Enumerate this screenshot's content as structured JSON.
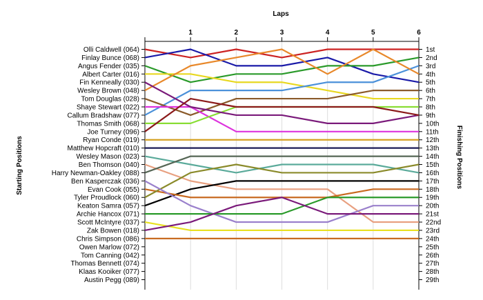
{
  "chart_data": {
    "type": "line",
    "title": "",
    "xlabel": "Laps",
    "ylabel": "Starting Positions",
    "y2label": "Finishing Positions",
    "x": [
      0,
      1,
      2,
      3,
      4,
      5,
      6
    ],
    "x_tick_labels": [
      "1",
      "2",
      "3",
      "4",
      "5",
      "6"
    ],
    "ylim": [
      1,
      29
    ],
    "y_inverted": true,
    "grid": true,
    "starting_grid": [
      "Olli Caldwell (064)",
      "Finlay Bunce (068)",
      "Angus Fender (035)",
      "Albert Carter (016)",
      "Fin Kenneally (030)",
      "Wesley Brown (048)",
      "Tom Douglas (028)",
      "Shaye Stewart (022)",
      "Callum Bradshaw (077)",
      "Thomas Smith (068)",
      "Joe Turney (096)",
      "Ryan Conde (019)",
      "Matthew Hopcraft (010)",
      "Wesley Mason (023)",
      "Ben Thomson (040)",
      "Harry Newman-Oakley (088)",
      "Ben Kasperczak (036)",
      "Evan Cook (055)",
      "Tyler Proudlock (060)",
      "Keaton Samra (057)",
      "Archie Hancox (071)",
      "Scott McIntyre (037)",
      "Zak Bowen (018)",
      "Chris Simpson (086)",
      "Owen Marlow (072)",
      "Tom Canning (042)",
      "Thomas Bennett (074)",
      "Klaas Kooiker (077)",
      "Austin Pegg (089)"
    ],
    "finishing_labels": [
      "1st",
      "2nd",
      "3rd",
      "4th",
      "5th",
      "6th",
      "7th",
      "8th",
      "9th",
      "10th",
      "11th",
      "12th",
      "13th",
      "14th",
      "15th",
      "16th",
      "17th",
      "18th",
      "19th",
      "20th",
      "21st",
      "22nd",
      "23rd",
      "24th",
      "25th",
      "26th",
      "27th",
      "28th",
      "29th"
    ],
    "series": [
      {
        "color": "#cc2222",
        "values": [
          1,
          2,
          1,
          2,
          1,
          1,
          1
        ]
      },
      {
        "color": "#1a1aa8",
        "values": [
          2,
          1,
          3,
          3,
          2,
          4,
          5
        ]
      },
      {
        "color": "#2a9a2a",
        "values": [
          3,
          5,
          4,
          4,
          3,
          3,
          2
        ]
      },
      {
        "color": "#e8d820",
        "values": [
          4,
          4,
          5,
          5,
          6,
          7,
          7
        ]
      },
      {
        "color": "#4a90d9",
        "values": [
          9,
          6,
          6,
          6,
          5,
          5,
          3
        ]
      },
      {
        "color": "#e8882a",
        "values": [
          6,
          3,
          2,
          1,
          4,
          1,
          4
        ]
      },
      {
        "color": "#8a5a2a",
        "values": [
          7,
          9,
          7,
          7,
          7,
          6,
          6
        ]
      },
      {
        "color": "#dd33dd",
        "values": [
          8,
          8,
          11,
          11,
          11,
          11,
          11
        ]
      },
      {
        "color": "#88dd33",
        "values": [
          10,
          10,
          8,
          8,
          8,
          8,
          8
        ]
      },
      {
        "color": "#7a1a7a",
        "values": [
          5,
          8,
          9,
          9,
          10,
          10,
          9
        ]
      },
      {
        "color": "#8b1a1a",
        "values": [
          11,
          7,
          8,
          8,
          8,
          8,
          9
        ]
      },
      {
        "color": "#d4a020",
        "values": [
          12,
          12,
          12,
          12,
          12,
          12,
          12
        ]
      },
      {
        "color": "#1a1a55",
        "values": [
          13,
          13,
          13,
          13,
          13,
          13,
          13
        ]
      },
      {
        "color": "#5aaa9a",
        "values": [
          14,
          15,
          16,
          15,
          15,
          15,
          16
        ]
      },
      {
        "color": "#e8a080",
        "values": [
          15,
          17,
          18,
          18,
          18,
          22,
          22
        ]
      },
      {
        "color": "#556655",
        "values": [
          16,
          14,
          14,
          14,
          14,
          14,
          14
        ]
      },
      {
        "color": "#000000",
        "values": [
          20,
          18,
          17,
          17,
          17,
          17,
          17
        ]
      },
      {
        "color": "#c86a20",
        "values": [
          18,
          19,
          19,
          19,
          19,
          18,
          18
        ]
      },
      {
        "color": "#8a8a2a",
        "values": [
          19,
          16,
          15,
          16,
          16,
          16,
          15
        ]
      },
      {
        "color": "#9a80cc",
        "values": [
          17,
          20,
          22,
          22,
          22,
          20,
          20
        ]
      },
      {
        "color": "#2a9a2a",
        "values": [
          21,
          21,
          21,
          21,
          19,
          19,
          19
        ]
      },
      {
        "color": "#e8e020",
        "values": [
          22,
          23,
          23,
          23,
          23,
          23,
          23
        ]
      },
      {
        "color": "#7a1a7a",
        "values": [
          23,
          22,
          20,
          19,
          21,
          21,
          21
        ]
      },
      {
        "color": "#c86a20",
        "values": [
          24,
          24,
          24,
          24,
          24,
          24,
          24
        ]
      }
    ]
  }
}
